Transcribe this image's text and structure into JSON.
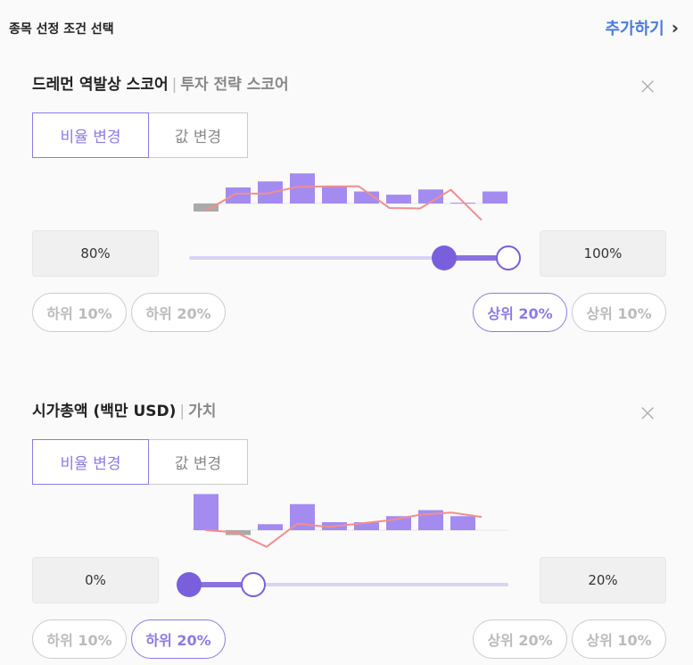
{
  "header": {
    "title": "종목 선정 조건 선택",
    "add_label": "추가하기",
    "add_chevron": "›"
  },
  "colors": {
    "accent": "#7a5fdc",
    "bar": "#a48bf0",
    "bar_negative": "#aaaaaa",
    "line": "#f28e8e",
    "link": "#4a7be0"
  },
  "cards": [
    {
      "title": "드레먼 역발상 스코어",
      "category": "투자 전략 스코어",
      "close": "×",
      "modes": [
        "비율 변경",
        "값 변경"
      ],
      "active_mode": 0,
      "min_value": "80%",
      "max_value": "100%",
      "range_low_fraction": 0.8,
      "range_high_fraction": 1.0,
      "chips": [
        "하위 10%",
        "하위 20%",
        "상위 20%",
        "상위 10%"
      ],
      "active_chip": 2,
      "histogram": {
        "bars": [
          -0.2,
          0.4,
          0.55,
          0.75,
          0.42,
          0.3,
          0.22,
          0.35,
          0.02,
          0.3
        ],
        "line": [
          -0.35,
          0.45,
          0.45,
          0.75,
          0.78,
          0.78,
          -0.2,
          -0.22,
          0.62,
          -0.75
        ]
      }
    },
    {
      "title": "시가총액 (백만 USD)",
      "category": "가치",
      "close": "×",
      "modes": [
        "비율 변경",
        "값 변경"
      ],
      "active_mode": 0,
      "min_value": "0%",
      "max_value": "20%",
      "range_low_fraction": 0.0,
      "range_high_fraction": 0.2,
      "chips": [
        "하위 10%",
        "하위 20%",
        "상위 20%",
        "상위 10%"
      ],
      "active_chip": 1,
      "histogram": {
        "bars": [
          0.9,
          -0.12,
          0.15,
          0.65,
          0.2,
          0.2,
          0.35,
          0.5,
          0.35
        ],
        "line": [
          0.0,
          -0.1,
          -0.75,
          0.3,
          0.15,
          0.3,
          0.45,
          0.7,
          0.8,
          0.6
        ]
      }
    }
  ]
}
